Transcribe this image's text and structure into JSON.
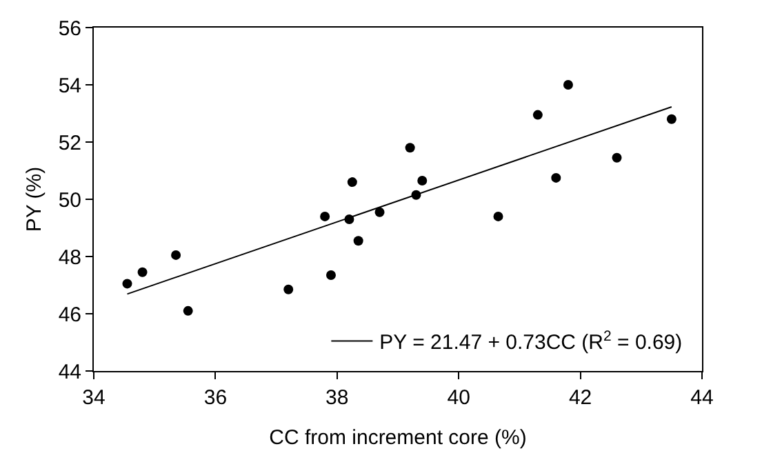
{
  "chart_data": {
    "type": "scatter",
    "xlabel": "CC from increment core (%)",
    "ylabel": "PY (%)",
    "xlim": [
      34,
      44
    ],
    "xticks": [
      34,
      36,
      38,
      40,
      42,
      44
    ],
    "ylim": [
      44,
      56
    ],
    "yticks": [
      44,
      46,
      48,
      50,
      52,
      54,
      56
    ],
    "legend": "bottom right",
    "series": [
      {
        "color": "#000000",
        "marker": "circle",
        "x": [
          34.55,
          34.8,
          35.35,
          35.55,
          37.2,
          37.8,
          37.9,
          38.2,
          38.25,
          38.35,
          38.7,
          39.2,
          39.3,
          39.4,
          40.65,
          41.3,
          41.6,
          41.8,
          42.6,
          43.5
        ],
        "values": [
          47.05,
          47.45,
          48.05,
          46.1,
          46.85,
          49.4,
          47.35,
          49.3,
          50.6,
          48.55,
          49.55,
          51.8,
          50.15,
          50.65,
          49.4,
          52.95,
          50.75,
          54.0,
          51.45,
          52.8
        ]
      },
      {
        "type": "line",
        "name": "PY = 21.47 + 0.73CC (R$^{2}$ = 0.69)",
        "color": "#000000",
        "line_style": "solid",
        "marker": "none",
        "x": [
          34.55,
          43.5
        ],
        "values": [
          46.69,
          53.23
        ]
      }
    ]
  }
}
